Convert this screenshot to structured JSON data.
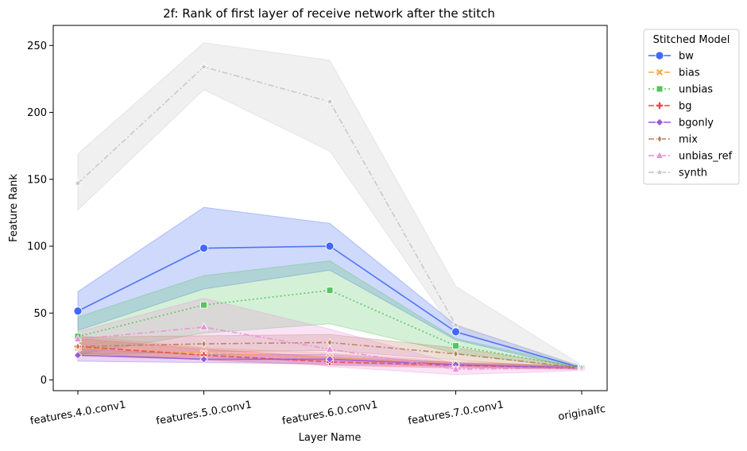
{
  "chart_data": {
    "type": "line",
    "title": "2f: Rank of first layer of receive network after the stitch",
    "xlabel": "Layer Name",
    "ylabel": "Feature Rank",
    "categories": [
      "features.4.0.conv1",
      "features.5.0.conv1",
      "features.6.0.conv1",
      "features.7.0.conv1",
      "originalfc"
    ],
    "ylim": [
      -8,
      265
    ],
    "yticks": [
      0,
      50,
      100,
      150,
      200,
      250
    ],
    "grid": false,
    "legend": {
      "title": "Stitched Model",
      "placement": "outside-right"
    },
    "series": [
      {
        "name": "bw",
        "color": "#4169f5",
        "marker": "circle",
        "dash": "solid",
        "values": [
          51.5,
          98.5,
          100,
          36,
          9
        ],
        "band_low": [
          37,
          68,
          82,
          30,
          8
        ],
        "band_high": [
          66,
          129,
          117,
          41,
          10
        ]
      },
      {
        "name": "bias",
        "color": "#f5a54a",
        "marker": "x",
        "dash": "dashed",
        "values": [
          24,
          20,
          17,
          12,
          9
        ],
        "band_low": [
          18,
          17,
          14,
          10,
          8
        ],
        "band_high": [
          33,
          24,
          20,
          14,
          10
        ]
      },
      {
        "name": "unbias",
        "color": "#55c45e",
        "marker": "square",
        "dash": "dotted",
        "values": [
          32.5,
          56,
          67,
          25.5,
          9
        ],
        "band_low": [
          19,
          35,
          42,
          20,
          8
        ],
        "band_high": [
          47,
          78,
          89,
          31,
          10
        ]
      },
      {
        "name": "bg",
        "color": "#e84a4a",
        "marker": "plus",
        "dash": "dashed",
        "values": [
          25,
          18.5,
          13.5,
          11,
          9
        ],
        "band_low": [
          20,
          15,
          11,
          9,
          8
        ],
        "band_high": [
          31,
          23,
          17,
          13,
          10
        ]
      },
      {
        "name": "bgonly",
        "color": "#9b59d6",
        "marker": "diamond",
        "dash": "solid",
        "values": [
          18.5,
          15.5,
          15.5,
          11.5,
          9
        ],
        "band_low": [
          14,
          13,
          12,
          10,
          8
        ],
        "band_high": [
          23,
          19,
          19,
          13,
          10
        ]
      },
      {
        "name": "mix",
        "color": "#b9805a",
        "marker": "thin-diamond",
        "dash": "dashdot",
        "values": [
          25,
          27,
          28,
          19.5,
          9
        ],
        "band_low": [
          19,
          21,
          22,
          15,
          8
        ],
        "band_high": [
          32,
          33,
          34,
          24,
          10
        ]
      },
      {
        "name": "unbias_ref",
        "color": "#ec8fd6",
        "marker": "triangle",
        "dash": "dashdot",
        "values": [
          30.5,
          39.5,
          23,
          8,
          9
        ],
        "band_low": [
          22,
          22,
          10,
          4,
          7
        ],
        "band_high": [
          36,
          61,
          38,
          12,
          10
        ]
      },
      {
        "name": "synth",
        "color": "#c4c4c4",
        "marker": "star",
        "dash": "dashdot",
        "values": [
          147,
          234,
          208,
          41,
          9.5
        ],
        "band_low": [
          127,
          217,
          171,
          35,
          8
        ],
        "band_high": [
          169,
          252,
          239,
          70,
          11
        ]
      }
    ]
  }
}
